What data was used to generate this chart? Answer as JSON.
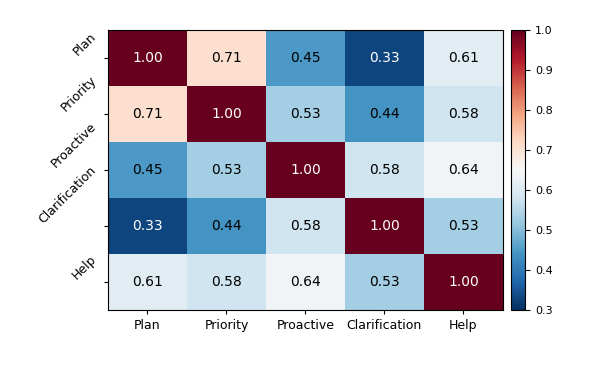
{
  "labels": [
    "Plan",
    "Priority",
    "Proactive",
    "Clarification",
    "Help"
  ],
  "matrix": [
    [
      1.0,
      0.71,
      0.45,
      0.33,
      0.61
    ],
    [
      0.71,
      1.0,
      0.53,
      0.44,
      0.58
    ],
    [
      0.45,
      0.53,
      1.0,
      0.58,
      0.64
    ],
    [
      0.33,
      0.44,
      0.58,
      1.0,
      0.53
    ],
    [
      0.61,
      0.58,
      0.64,
      0.53,
      1.0
    ]
  ],
  "vmin": 0.3,
  "vmax": 1.0,
  "cmap": "RdBu_r",
  "colorbar_ticks": [
    0.3,
    0.4,
    0.5,
    0.6,
    0.7,
    0.8,
    0.9,
    1.0
  ],
  "figure_width": 6.0,
  "figure_height": 3.78,
  "dpi": 100
}
